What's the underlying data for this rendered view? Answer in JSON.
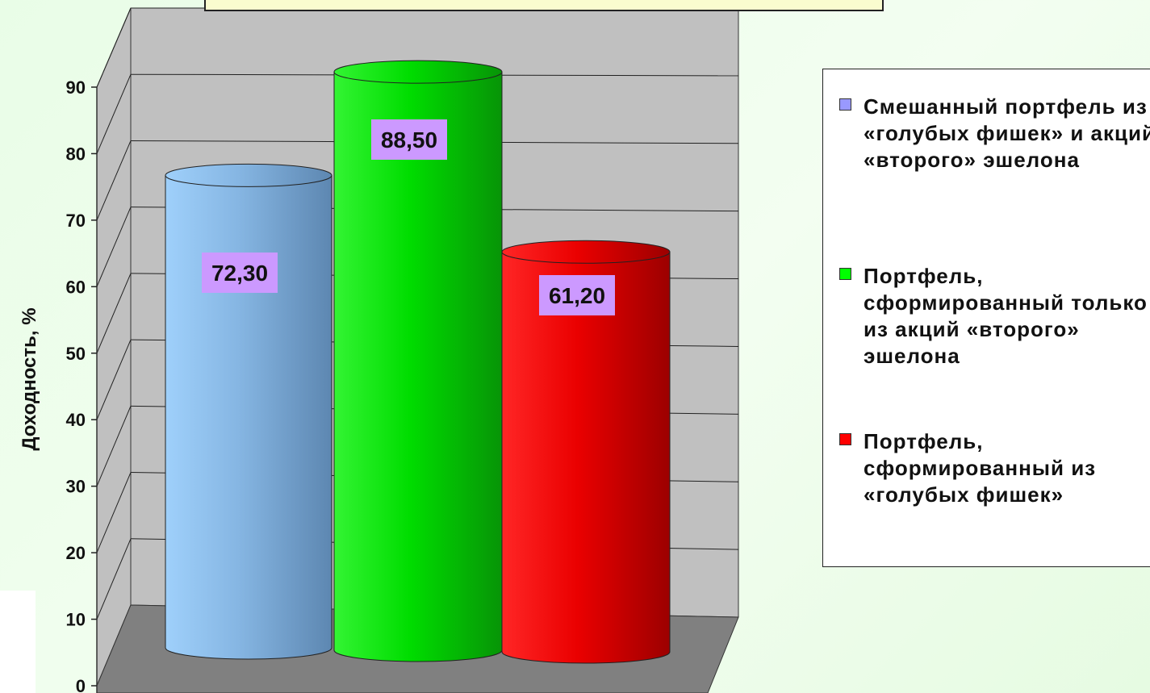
{
  "chart_data": {
    "type": "bar",
    "style": "3d-cylinder",
    "categories": [
      "Смешанный портфель из «голубых фишек» и акций «второго» эшелона",
      "Портфель, сформированный только из акций «второго» эшелона",
      "Портфель, сформированный из «голубых фишек»"
    ],
    "values": [
      72.3,
      88.5,
      61.2
    ],
    "value_labels": [
      "72,30",
      "88,50",
      "61,20"
    ],
    "title": "",
    "xlabel": "",
    "ylabel": "Доходность, %",
    "ylim": [
      0,
      90
    ],
    "yticks": [
      "0",
      "10",
      "20",
      "30",
      "40",
      "50",
      "60",
      "70",
      "80",
      "90"
    ],
    "grid": true,
    "legend_position": "right",
    "colors": [
      "#8eb6e3",
      "#10e810",
      "#f00000"
    ],
    "label_background": "#cc99ff"
  },
  "legend": {
    "items": [
      {
        "text": "Смешанный портфель из «голубых фишек» и акций «второго» эшелона",
        "color": "#9999ff"
      },
      {
        "text": "Портфель, сформированный только из акций «второго» эшелона",
        "color": "#00ff00"
      },
      {
        "text": "Портфель, сформированный из «голубых фишек»",
        "color": "#ff0000"
      }
    ]
  }
}
